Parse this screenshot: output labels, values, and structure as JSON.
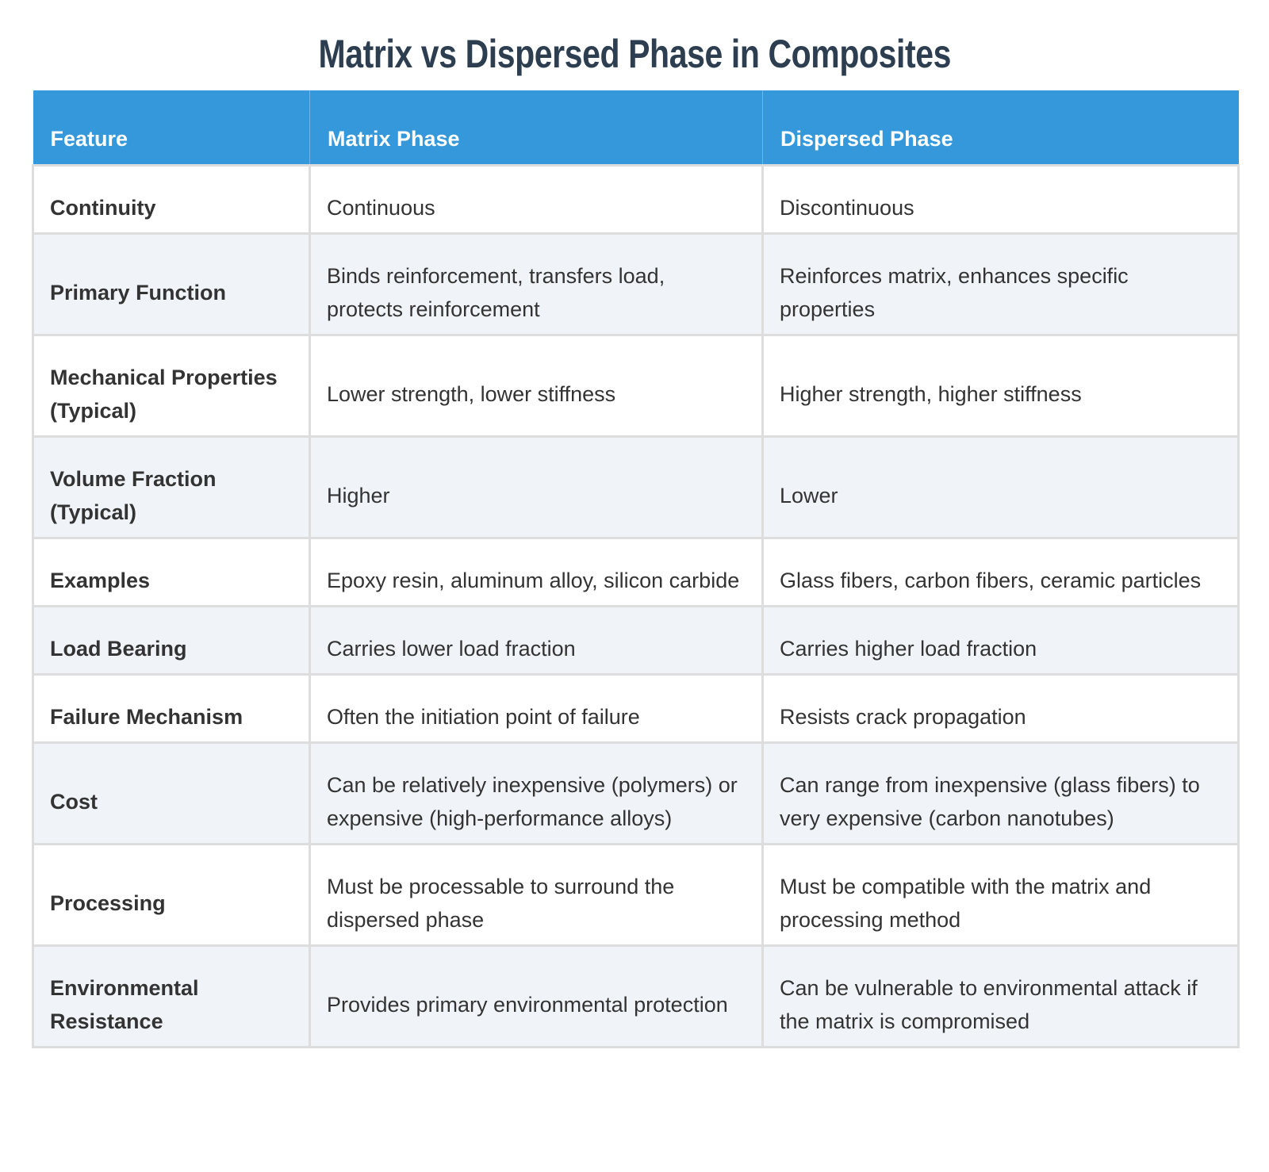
{
  "title": "Matrix vs Dispersed Phase in Composites",
  "colors": {
    "header_bg": "#3498db",
    "header_text": "#ffffff",
    "title": "#2c3e50",
    "row_alt_bg": "#f0f4f9",
    "border": "#dddddd",
    "text": "#333333"
  },
  "table": {
    "headers": [
      "Feature",
      "Matrix Phase",
      "Dispersed Phase"
    ],
    "rows": [
      {
        "feature": "Continuity",
        "matrix": "Continuous",
        "dispersed": "Discontinuous"
      },
      {
        "feature": "Primary Function",
        "matrix": "Binds reinforcement, transfers load, protects reinforcement",
        "dispersed": "Reinforces matrix, enhances specific properties"
      },
      {
        "feature": "Mechanical Properties (Typical)",
        "matrix": "Lower strength, lower stiffness",
        "dispersed": "Higher strength, higher stiffness"
      },
      {
        "feature": "Volume Fraction (Typical)",
        "matrix": "Higher",
        "dispersed": "Lower"
      },
      {
        "feature": "Examples",
        "matrix": "Epoxy resin, aluminum alloy, silicon carbide",
        "dispersed": "Glass fibers, carbon fibers, ceramic particles"
      },
      {
        "feature": "Load Bearing",
        "matrix": "Carries lower load fraction",
        "dispersed": "Carries higher load fraction"
      },
      {
        "feature": "Failure Mechanism",
        "matrix": "Often the initiation point of failure",
        "dispersed": "Resists crack propagation"
      },
      {
        "feature": "Cost",
        "matrix": "Can be relatively inexpensive (polymers) or expensive (high-performance alloys)",
        "dispersed": "Can range from inexpensive (glass fibers) to very expensive (carbon nanotubes)"
      },
      {
        "feature": "Processing",
        "matrix": "Must be processable to surround the dispersed phase",
        "dispersed": "Must be compatible with the matrix and processing method"
      },
      {
        "feature": "Environmental Resistance",
        "matrix": "Provides primary environmental protection",
        "dispersed": "Can be vulnerable to environmental attack if the matrix is compromised"
      }
    ]
  }
}
